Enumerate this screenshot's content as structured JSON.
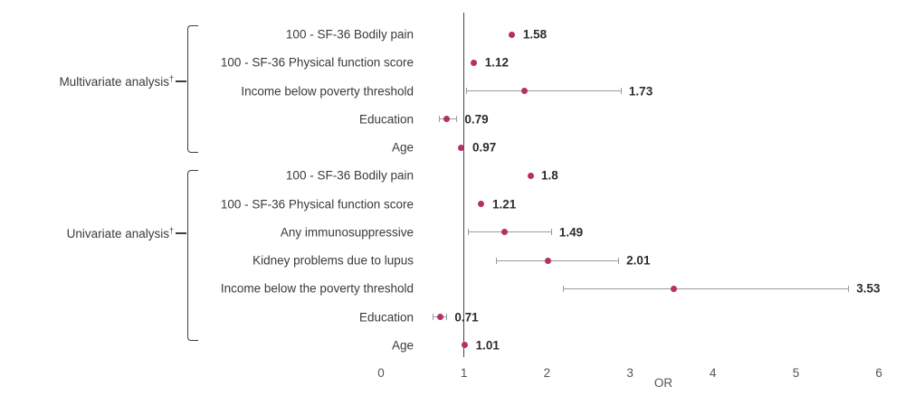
{
  "chart_data": {
    "type": "scatter",
    "subtype": "forest-plot",
    "title": "",
    "xlabel": "OR",
    "ylabel": "",
    "xlim": [
      0,
      6
    ],
    "xticks": [
      "0",
      "1",
      "2",
      "3",
      "4",
      "5",
      "6"
    ],
    "xtick_values": [
      0,
      1,
      2,
      3,
      4,
      5,
      6
    ],
    "reference_line_x": 1,
    "grid": false,
    "legend": false,
    "groups": [
      {
        "label": "Multivariate analysis",
        "label_sup": "†",
        "items": [
          {
            "label": "100 - SF-36 Bodily pain",
            "or": 1.58,
            "or_label": "1.58",
            "ci": null
          },
          {
            "label": "100 - SF-36 Physical function score",
            "or": 1.12,
            "or_label": "1.12",
            "ci": null
          },
          {
            "label": "Income below poverty threshold",
            "or": 1.73,
            "or_label": "1.73",
            "ci": [
              1.03,
              2.9
            ]
          },
          {
            "label": "Education",
            "or": 0.79,
            "or_label": "0.79",
            "ci": [
              0.7,
              0.92
            ]
          },
          {
            "label": "Age",
            "or": 0.97,
            "or_label": "0.97",
            "ci": null
          }
        ]
      },
      {
        "label": "Univariate analysis",
        "label_sup": "†",
        "items": [
          {
            "label": "100 - SF-36 Bodily pain",
            "or": 1.8,
            "or_label": "1.8",
            "ci": null
          },
          {
            "label": "100 - SF-36 Physical function score",
            "or": 1.21,
            "or_label": "1.21",
            "ci": null
          },
          {
            "label": "Any immunosuppressive",
            "or": 1.49,
            "or_label": "1.49",
            "ci": [
              1.05,
              2.06
            ]
          },
          {
            "label": "Kidney problems due to lupus",
            "or": 2.01,
            "or_label": "2.01",
            "ci": [
              1.39,
              2.87
            ]
          },
          {
            "label": "Income below the poverty threshold",
            "or": 3.53,
            "or_label": "3.53",
            "ci": [
              2.19,
              5.64
            ]
          },
          {
            "label": "Education",
            "or": 0.71,
            "or_label": "0.71",
            "ci": [
              0.62,
              0.8
            ]
          },
          {
            "label": "Age",
            "or": 1.01,
            "or_label": "1.01",
            "ci": null
          }
        ]
      }
    ],
    "colors": {
      "dot": "#b72e68",
      "error_bar": "#9b9b9b",
      "reference_line": "#454545",
      "bracket": "#3d3d3d",
      "item_text": "#3a3a3a",
      "value_text": "#2d2d2d",
      "tick_text": "#555555"
    }
  }
}
